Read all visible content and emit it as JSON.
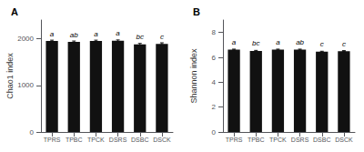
{
  "chart_data": [
    {
      "type": "bar",
      "title": "A",
      "categories": [
        "TPRS",
        "TPBC",
        "TPCK",
        "DSRS",
        "DSBC",
        "DSCK"
      ],
      "values": [
        1950,
        1930,
        1950,
        1955,
        1880,
        1890
      ],
      "errors": [
        18,
        20,
        18,
        18,
        18,
        22
      ],
      "annotations": [
        "a",
        "ab",
        "a",
        "a",
        "bc",
        "c"
      ],
      "ylabel": "Chao1 index",
      "ylim": [
        0,
        2400
      ],
      "yticks": [
        0,
        1000,
        2000
      ],
      "color": "#111111",
      "grid": false
    },
    {
      "type": "bar",
      "title": "B",
      "categories": [
        "TPRS",
        "TPBC",
        "TPCK",
        "DSRS",
        "DSBC",
        "DSCK"
      ],
      "values": [
        6.62,
        6.52,
        6.62,
        6.62,
        6.45,
        6.5
      ],
      "errors": [
        0.04,
        0.04,
        0.04,
        0.04,
        0.04,
        0.04
      ],
      "annotations": [
        "a",
        "bc",
        "a",
        "ab",
        "c",
        "c"
      ],
      "ylabel": "Shannon index",
      "ylim": [
        0,
        9.0
      ],
      "yticks": [
        0,
        2,
        4,
        6,
        8
      ],
      "color": "#111111",
      "grid": false
    }
  ]
}
